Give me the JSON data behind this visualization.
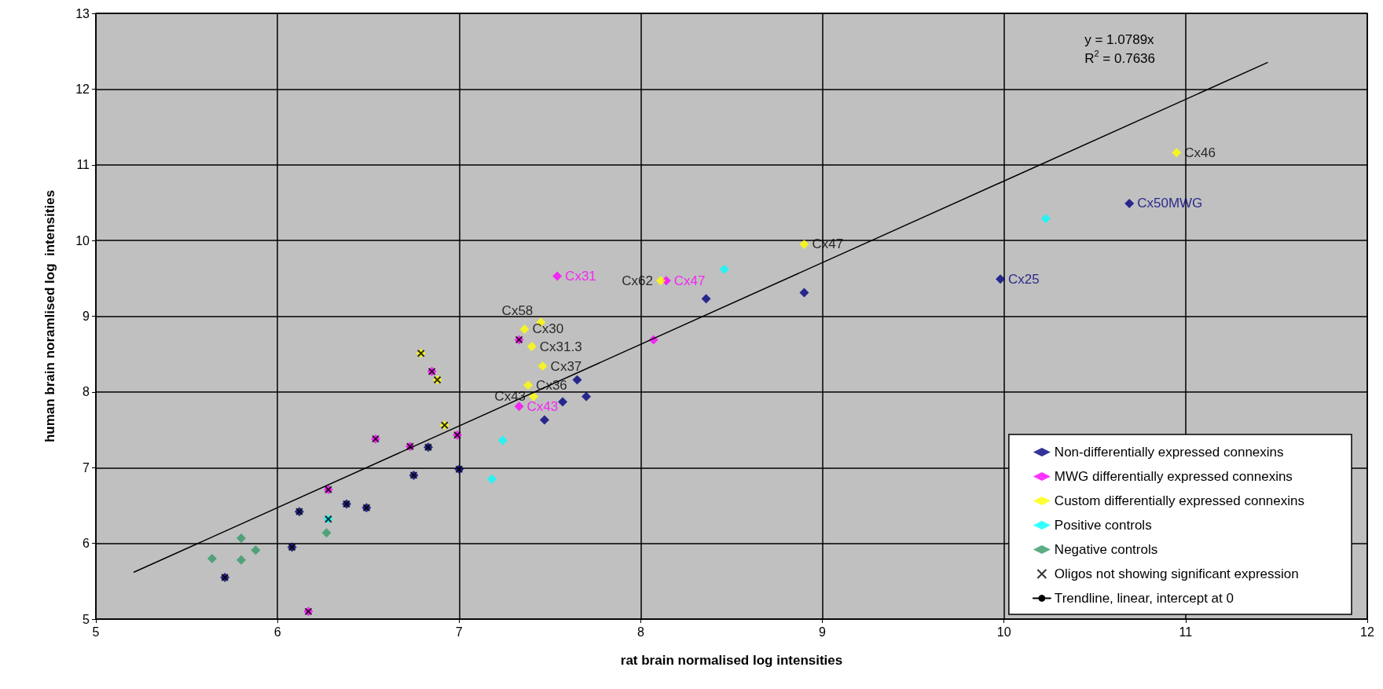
{
  "chart_data": {
    "type": "scatter",
    "xlabel": "rat brain normalised log intensities",
    "ylabel": "human brain noramlised log  intensities",
    "xlim": [
      5,
      12
    ],
    "xticks": [
      5,
      6,
      7,
      8,
      9,
      10,
      11,
      12
    ],
    "ylim": [
      5,
      13
    ],
    "yticks": [
      5,
      6,
      7,
      8,
      9,
      10,
      11,
      12,
      13
    ],
    "grid": true,
    "legend": "bottom right",
    "annotations": [
      "y = 1.0789x",
      "R$^{2}$ = 0.7636"
    ],
    "series": [
      {
        "name": "Non-differentially expressed connexins",
        "color": "#000080",
        "marker": "diamond",
        "x": [
          5.71,
          6.08,
          6.12,
          6.38,
          6.49,
          6.75,
          6.83,
          7.0,
          7.47,
          7.57,
          7.65,
          7.7,
          8.36,
          8.9,
          9.98,
          10.69
        ],
        "values": [
          5.55,
          5.95,
          6.42,
          6.52,
          6.47,
          6.9,
          7.27,
          6.98,
          7.63,
          7.87,
          8.16,
          7.94,
          9.23,
          9.31,
          9.49,
          10.49
        ],
        "value_labels": [
          null,
          null,
          null,
          null,
          null,
          null,
          null,
          null,
          null,
          null,
          null,
          null,
          null,
          null,
          "Cx25",
          "Cx50MWG"
        ]
      },
      {
        "name": "MWG differentially expressed connexins",
        "color": "#ff00ff",
        "marker": "diamond",
        "x": [
          6.17,
          6.28,
          6.54,
          6.73,
          6.85,
          6.99,
          7.33,
          7.33,
          7.54,
          8.07,
          8.14
        ],
        "values": [
          5.1,
          6.71,
          7.38,
          7.28,
          8.27,
          7.43,
          7.81,
          8.69,
          9.53,
          8.69,
          9.47
        ],
        "value_labels": [
          null,
          null,
          null,
          null,
          null,
          null,
          "Cx43",
          null,
          "Cx31",
          null,
          "Cx47"
        ]
      },
      {
        "name": "Custom differentially expressed connexins",
        "color": "#ffff00",
        "marker": "diamond",
        "x": [
          6.79,
          6.88,
          6.92,
          7.36,
          7.45,
          7.4,
          7.46,
          7.38,
          7.41,
          8.11,
          8.9,
          10.95
        ],
        "values": [
          8.51,
          8.16,
          7.56,
          8.83,
          8.92,
          8.6,
          8.34,
          8.09,
          7.94,
          9.47,
          9.95,
          11.16
        ],
        "value_labels": [
          null,
          null,
          null,
          "Cx30",
          "Cx58",
          "Cx31.3",
          "Cx37",
          "Cx36",
          "Cx43",
          "Cx62",
          "Cx47",
          "Cx46"
        ]
      },
      {
        "name": "Positive controls",
        "color": "#00ffff",
        "marker": "diamond",
        "x": [
          6.28,
          7.18,
          7.24,
          8.46,
          10.23
        ],
        "values": [
          6.32,
          6.85,
          7.36,
          9.62,
          10.29
        ]
      },
      {
        "name": "Negative controls",
        "color": "#339966",
        "marker": "diamond",
        "x": [
          5.64,
          5.8,
          5.8,
          5.88,
          6.27
        ],
        "values": [
          5.8,
          6.07,
          5.78,
          5.91,
          6.14
        ]
      },
      {
        "name": "Oligos not showing significant expression",
        "color": "#000000",
        "marker": "cross",
        "x": [
          5.71,
          6.08,
          6.12,
          6.38,
          6.49,
          6.75,
          6.83,
          7.0,
          6.17,
          6.28,
          6.54,
          6.73,
          6.85,
          6.99,
          7.33,
          6.79,
          6.88,
          6.92,
          6.28
        ],
        "values": [
          5.55,
          5.95,
          6.42,
          6.52,
          6.47,
          6.9,
          7.27,
          6.98,
          5.1,
          6.71,
          7.38,
          7.28,
          8.27,
          7.43,
          8.69,
          8.51,
          8.16,
          7.56,
          6.32
        ]
      },
      {
        "name": "Trendline, linear, intercept at 0",
        "type": "line",
        "color": "#000000",
        "marker": "none",
        "line_style": "solid",
        "x": [
          5.21,
          11.45
        ],
        "values": [
          5.62,
          12.35
        ]
      }
    ]
  }
}
